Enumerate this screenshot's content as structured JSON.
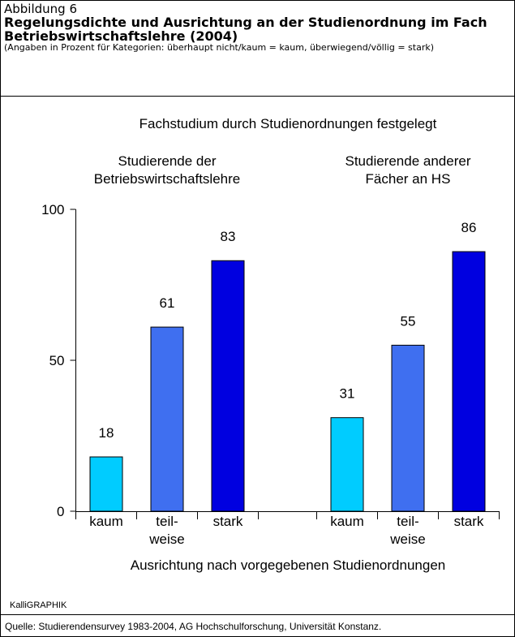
{
  "header": {
    "label": "Abbildung 6",
    "title": "Regelungsdichte und Ausrichtung an der Studienordnung im Fach Betriebswirtschaftslehre (2004)",
    "subtitle": "(Angaben in Prozent für Kategorien: überhaupt nicht/kaum = kaum, überwiegend/völlig = stark)"
  },
  "chart_data": {
    "type": "bar",
    "title": "Fachstudium durch Studienordnungen festgelegt",
    "categories": [
      "Studierende der\nBetriebswirtschaftslehre",
      "Studierende anderer\nFächer an HS"
    ],
    "series": [
      {
        "name": "kaum",
        "color": "#00ccff",
        "values": [
          18,
          31
        ]
      },
      {
        "name": "teil-\nweise",
        "color": "#3f6ff0",
        "values": [
          61,
          55
        ]
      },
      {
        "name": "stark",
        "color": "#0000e0",
        "values": [
          83,
          86
        ]
      }
    ],
    "xlabel": "Ausrichtung nach vorgegebenen Studienordnungen",
    "ylim": [
      0,
      100
    ],
    "yticks": [
      0,
      50,
      100
    ]
  },
  "footer": {
    "credit": "KalliGRAPHIK",
    "source": "Quelle: Studierendensurvey 1983-2004, AG Hochschulforschung, Universität Konstanz."
  }
}
